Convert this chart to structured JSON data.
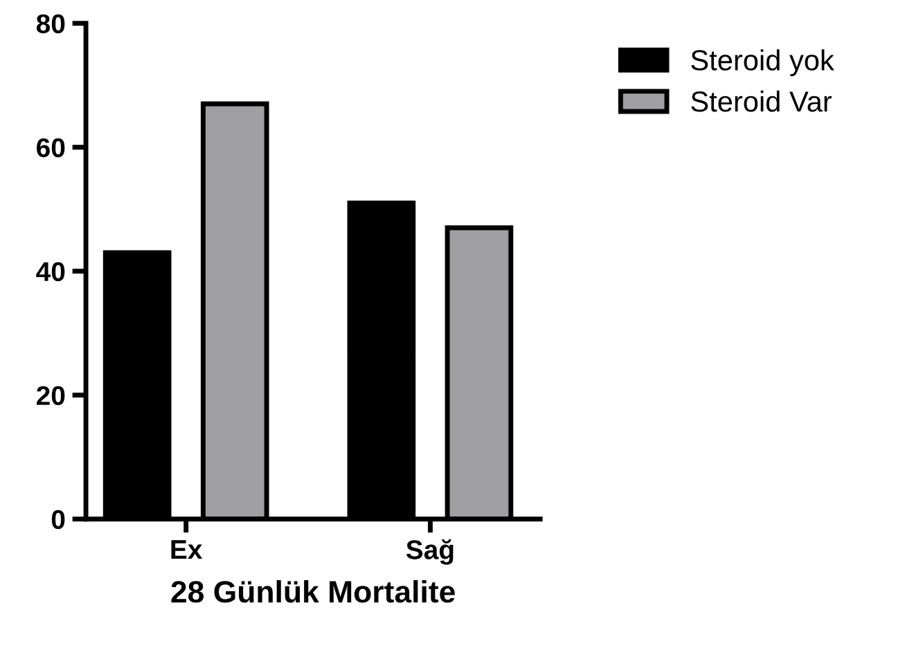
{
  "chart_data": {
    "type": "bar",
    "xlabel": "28 Günlük Mortalite",
    "categories": [
      "Ex",
      "Sağ"
    ],
    "series": [
      {
        "name": "Steroid yok",
        "color": "#000000",
        "values": [
          43,
          51
        ]
      },
      {
        "name": "Steroid Var",
        "color": "#a0a0a4",
        "values": [
          67,
          47
        ]
      }
    ],
    "ylim": [
      0,
      80
    ],
    "yticks": [
      0,
      20,
      40,
      60,
      80
    ],
    "grid": false,
    "legend": "top right"
  }
}
